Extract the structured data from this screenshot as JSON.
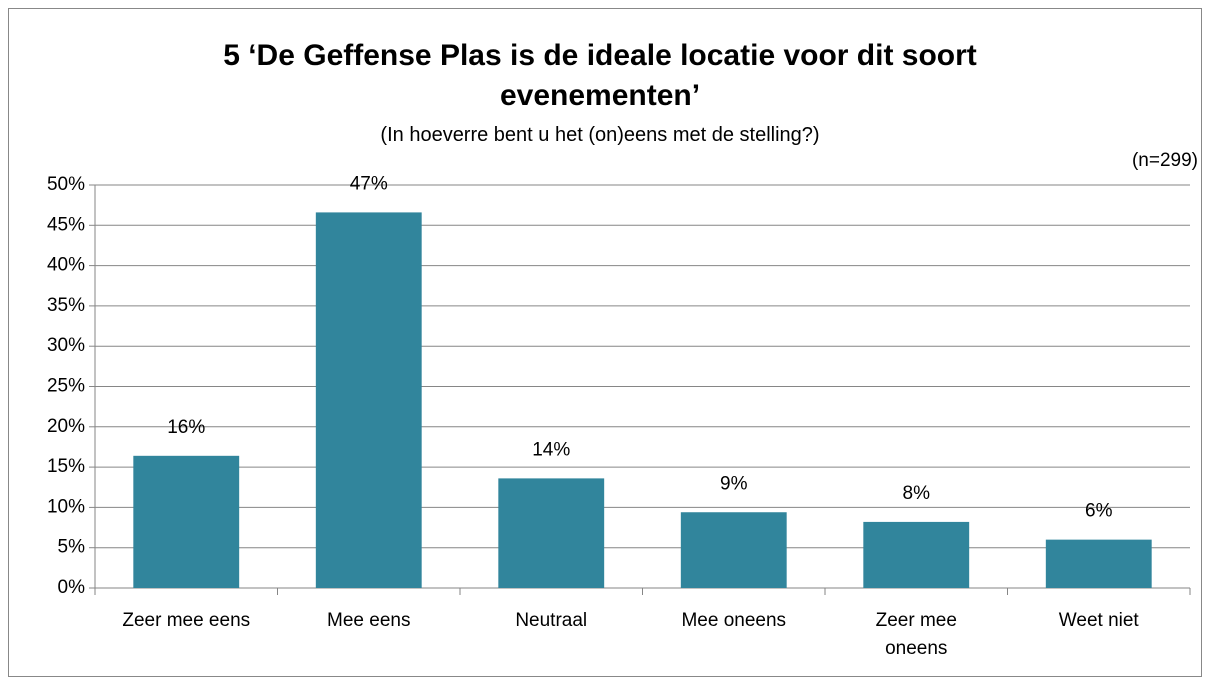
{
  "chart_data": {
    "type": "bar",
    "title": "5 ‘De Geffense Plas is de ideale locatie voor dit soort evenementen’",
    "subtitle": "(In hoeverre bent u het (on)eens met de stelling?)",
    "annotations": [
      "(n=299)"
    ],
    "categories": [
      "Zeer mee eens",
      "Mee eens",
      "Neutraal",
      "Mee oneens",
      "Zeer mee oneens",
      "Weet niet"
    ],
    "values": [
      16.4,
      46.6,
      13.6,
      9.4,
      8.2,
      6.0
    ],
    "value_labels": [
      "16%",
      "47%",
      "14%",
      "9%",
      "8%",
      "6%"
    ],
    "color": "#31859c",
    "ylim": [
      0,
      50
    ],
    "yticks": [
      {
        "value": 0,
        "label": "0%"
      },
      {
        "value": 5,
        "label": "5%"
      },
      {
        "value": 10,
        "label": "10%"
      },
      {
        "value": 15,
        "label": "15%"
      },
      {
        "value": 20,
        "label": "20%"
      },
      {
        "value": 25,
        "label": "25%"
      },
      {
        "value": 30,
        "label": "30%"
      },
      {
        "value": 35,
        "label": "35%"
      },
      {
        "value": 40,
        "label": "40%"
      },
      {
        "value": 45,
        "label": "45%"
      },
      {
        "value": 50,
        "label": "50%"
      }
    ],
    "grid": true
  }
}
